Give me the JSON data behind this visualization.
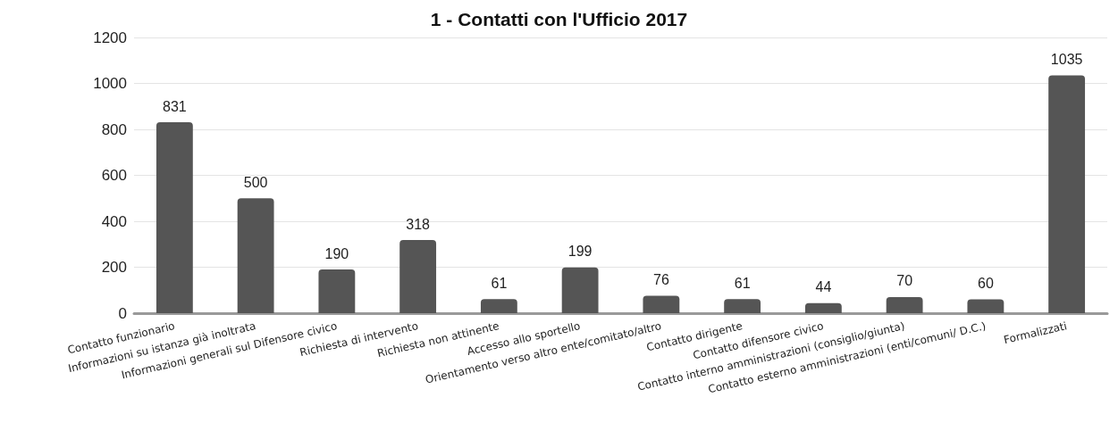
{
  "chart_data": {
    "type": "bar",
    "title": "1 - Contatti con l'Ufficio 2017",
    "categories": [
      "Contatto funzionario",
      "Informazioni su istanza già inoltrata",
      "Informazioni generali sul Difensore civico",
      "Richiesta di intervento",
      "Richiesta non attinente",
      "Accesso allo sportello",
      "Orientamento verso altro ente/comitato/altro",
      "Contatto dirigente",
      "Contatto difensore civico",
      "Contatto interno amministrazioni (consiglio/giunta)",
      "Contatto esterno amministrazioni (enti/comuni/ D.C.)",
      "Formalizzati"
    ],
    "values": [
      831,
      500,
      190,
      318,
      61,
      199,
      76,
      61,
      44,
      70,
      60,
      1035
    ],
    "color": "#555555",
    "ylim": [
      0,
      1200
    ],
    "yticks": [
      0,
      200,
      400,
      600,
      800,
      1000,
      1200
    ],
    "grid": "y",
    "data_labels": true
  }
}
